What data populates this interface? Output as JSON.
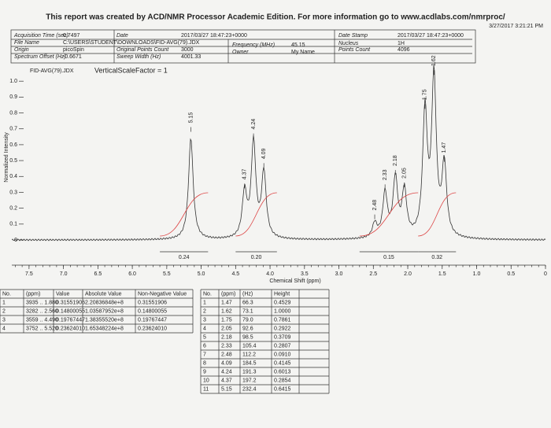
{
  "header": {
    "notice": "This report was created by ACD/NMR Processor Academic Edition. For more information go to www.acdlabs.com/nmrproc/",
    "timestamp": "3/27/2017 3:21:21 PM"
  },
  "info": [
    {
      "label": "Acquisition Time (sec)",
      "value": "0.7497"
    },
    {
      "label": "File Name",
      "value": "C:\\USERS\\STUDENT\\DOWNLOADS\\FID-AVG(79).JDX"
    },
    {
      "label": "Origin",
      "value": "picoSpin"
    },
    {
      "label": "Spectrum Offset (Hz)",
      "value": "-0.6671"
    },
    {
      "label": "Date",
      "value": "2017/03/27 18:47:23+0000"
    },
    {
      "label": "Original Points Count",
      "value": "3000"
    },
    {
      "label": "Sweep Width (Hz)",
      "value": "4001.33"
    },
    {
      "label": "Frequency (MHz)",
      "value": "45.15"
    },
    {
      "label": "Owner",
      "value": "My Name"
    },
    {
      "label": "Date Stamp",
      "value": "2017/03/27 18:47:23+0000"
    },
    {
      "label": "Nucleus",
      "value": "1H"
    },
    {
      "label": "Points Count",
      "value": "4096"
    }
  ],
  "spectrum": {
    "file": "FID-AVG(79).JDX",
    "scale_note": "VerticalScaleFactor = 1",
    "y_label": "Normalized Intensity",
    "x_label": "Chemical Shift (ppm)",
    "xlim": [
      7.75,
      0
    ],
    "ylim": [
      0,
      1.1
    ],
    "xticks": [
      7.5,
      {
        "value": 7,
        "label": "7.0"
      },
      6.5,
      {
        "value": 6,
        "label": "6.0"
      },
      5.5,
      {
        "value": 5,
        "label": "5.0"
      },
      4.5,
      {
        "value": 4,
        "label": "4.0"
      },
      3.5,
      {
        "value": 3,
        "label": "3.0"
      },
      2.5,
      {
        "value": 2,
        "label": "2.0"
      },
      1.5,
      {
        "value": 1,
        "label": "1.0"
      },
      0.5,
      0
    ],
    "yticks": [
      0,
      0.1,
      0.2,
      0.3,
      0.4,
      0.5,
      0.6,
      0.7,
      0.8,
      0.9,
      {
        "value": 1,
        "label": "1.0"
      }
    ],
    "integrals": [
      {
        "label": "0.24",
        "from": 5.6,
        "to": 4.9
      },
      {
        "label": "0.20",
        "from": 4.5,
        "to": 3.9
      },
      {
        "label": "0.15",
        "from": 2.7,
        "to": 1.85
      },
      {
        "label": "0.32",
        "from": 1.85,
        "to": 1.3
      }
    ]
  },
  "integral_table": {
    "headers": [
      "No.",
      "(ppm)",
      "Value",
      "Absolute Value",
      "Non-Negative Value"
    ],
    "rows": [
      [
        "1",
        "3935 .. 1.880",
        "0.31551906",
        "2.20836848e+8",
        "0.31551906"
      ],
      [
        "2",
        "3282 .. 2.560",
        "0.14800055",
        "1.03587952e+8",
        "0.14800055"
      ],
      [
        "3",
        "3559 .. 4.490",
        "0.19767447",
        "1.38355520e+8",
        "0.19767447"
      ],
      [
        "4",
        "3752 .. 5.520",
        "0.23624010",
        "1.65348224e+8",
        "0.23624010"
      ]
    ]
  },
  "peak_table": {
    "headers": [
      "No.",
      "(ppm)",
      "(Hz)",
      "Height"
    ],
    "rows": [
      [
        "1",
        "1.47",
        "66.3",
        "0.4529"
      ],
      [
        "2",
        "1.62",
        "73.1",
        "1.0000"
      ],
      [
        "3",
        "1.75",
        "79.0",
        "0.7861"
      ],
      [
        "4",
        "2.05",
        "92.6",
        "0.2922"
      ],
      [
        "5",
        "2.18",
        "98.5",
        "0.3709"
      ],
      [
        "6",
        "2.33",
        "105.4",
        "0.2807"
      ],
      [
        "7",
        "2.48",
        "112.2",
        "0.0910"
      ],
      [
        "8",
        "4.09",
        "184.5",
        "0.4145"
      ],
      [
        "9",
        "4.24",
        "191.3",
        "0.6013"
      ],
      [
        "10",
        "4.37",
        "197.2",
        "0.2854"
      ],
      [
        "11",
        "5.15",
        "232.4",
        "0.6415"
      ]
    ]
  }
}
